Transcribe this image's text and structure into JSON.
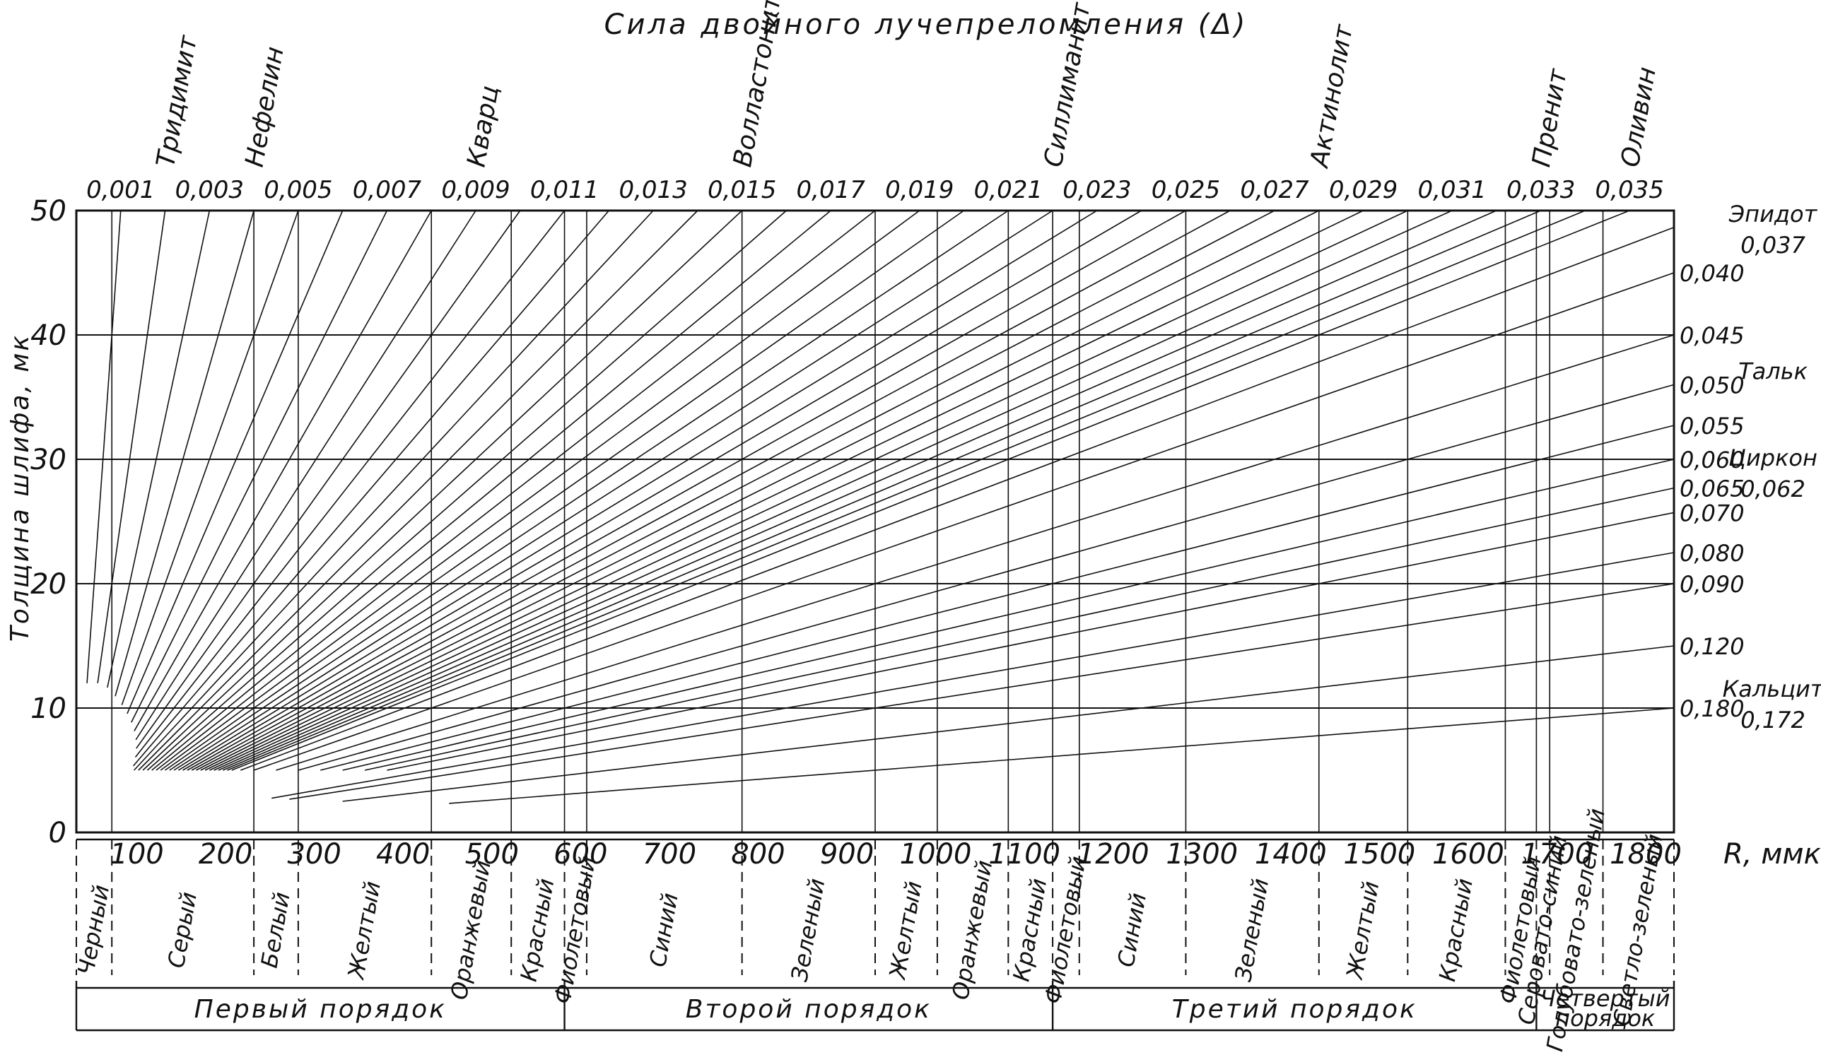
{
  "chart_data": {
    "type": "line",
    "title": "Сила двойного лучепреломления (Δ)",
    "ylabel": "Толщина шлифа, мк",
    "xlabel": "R, ммк",
    "xlim": [
      0,
      1800
    ],
    "ylim": [
      0,
      50
    ],
    "x_ticks": [
      "100",
      "200",
      "300",
      "400",
      "500",
      "600",
      "700",
      "800",
      "900",
      "1000",
      "1100",
      "1200",
      "1300",
      "1400",
      "1500",
      "1600",
      "1700",
      "1800"
    ],
    "y_ticks": [
      "0",
      "10",
      "20",
      "30",
      "40",
      "50"
    ],
    "birefringence_top_labels": [
      "0,001",
      "0,003",
      "0,005",
      "0,007",
      "0,009",
      "0,011",
      "0,013",
      "0,015",
      "0,017",
      "0,019",
      "0,021",
      "0,023",
      "0,025",
      "0,027",
      "0,029",
      "0,031",
      "0,033",
      "0,035"
    ],
    "birefringence_right_labels": [
      "0,040",
      "0,045",
      "0,050",
      "0,055",
      "0,060",
      "0,065",
      "0,070",
      "0,080",
      "0,090",
      "0,120",
      "0,180"
    ],
    "birefringence_lines": [
      0.001,
      0.002,
      0.003,
      0.004,
      0.005,
      0.006,
      0.007,
      0.008,
      0.009,
      0.01,
      0.011,
      0.012,
      0.013,
      0.014,
      0.015,
      0.016,
      0.017,
      0.018,
      0.019,
      0.02,
      0.021,
      0.022,
      0.023,
      0.024,
      0.025,
      0.026,
      0.027,
      0.028,
      0.029,
      0.03,
      0.031,
      0.032,
      0.033,
      0.034,
      0.035,
      0.037,
      0.04,
      0.045,
      0.05,
      0.055,
      0.06,
      0.065,
      0.07,
      0.08,
      0.09,
      0.12,
      0.18
    ],
    "minerals_top": [
      {
        "name": "Тридимит",
        "delta": 0.002
      },
      {
        "name": "Нефелин",
        "delta": 0.004
      },
      {
        "name": "Кварц",
        "delta": 0.009
      },
      {
        "name": "Волластонит",
        "delta": 0.015
      },
      {
        "name": "Силлиманит",
        "delta": 0.022
      },
      {
        "name": "Актинолит",
        "delta": 0.028
      },
      {
        "name": "Пренит",
        "delta": 0.033
      },
      {
        "name": "Оливин",
        "delta": 0.035
      }
    ],
    "minerals_right": [
      {
        "name": "Эпидот",
        "value": "0,037",
        "delta": 0.037
      },
      {
        "name": "Тальк",
        "value": "",
        "delta": 0.05
      },
      {
        "name": "Циркон",
        "value": "0,062",
        "delta": 0.062
      },
      {
        "name": "Кальцит",
        "value": "0,172",
        "delta": 0.172
      }
    ],
    "interference_colors": [
      {
        "label": "Черный",
        "from": 0,
        "to": 40
      },
      {
        "label": "Серый",
        "from": 40,
        "to": 200
      },
      {
        "label": "Белый",
        "from": 200,
        "to": 250
      },
      {
        "label": "Желтый",
        "from": 250,
        "to": 400
      },
      {
        "label": "Оранжевый",
        "from": 400,
        "to": 490
      },
      {
        "label": "Красный",
        "from": 490,
        "to": 550
      },
      {
        "label": "Фиолетовый",
        "from": 550,
        "to": 575
      },
      {
        "label": "Синий",
        "from": 575,
        "to": 750
      },
      {
        "label": "Зеленый",
        "from": 750,
        "to": 900
      },
      {
        "label": "Желтый",
        "from": 900,
        "to": 970
      },
      {
        "label": "Оранжевый",
        "from": 970,
        "to": 1050
      },
      {
        "label": "Красный",
        "from": 1050,
        "to": 1100
      },
      {
        "label": "Фиолетовый",
        "from": 1100,
        "to": 1130
      },
      {
        "label": "Синий",
        "from": 1130,
        "to": 1250
      },
      {
        "label": "Зеленый",
        "from": 1250,
        "to": 1400
      },
      {
        "label": "Желтый",
        "from": 1400,
        "to": 1500
      },
      {
        "label": "Красный",
        "from": 1500,
        "to": 1610
      },
      {
        "label": "Фиолетовый",
        "from": 1610,
        "to": 1645
      },
      {
        "label": "Серовато-синий",
        "from": 1645,
        "to": 1660
      },
      {
        "label": "Голубовато-зеленый",
        "from": 1660,
        "to": 1720
      },
      {
        "label": "Светло-зеленый",
        "from": 1720,
        "to": 1800
      }
    ],
    "orders": [
      {
        "label": "Первый порядок",
        "from": 0,
        "to": 550
      },
      {
        "label": "Второй порядок",
        "from": 550,
        "to": 1100
      },
      {
        "label": "Третий порядок",
        "from": 1100,
        "to": 1645
      },
      {
        "label": "Четвертый порядок",
        "from": 1645,
        "to": 1800
      }
    ]
  }
}
